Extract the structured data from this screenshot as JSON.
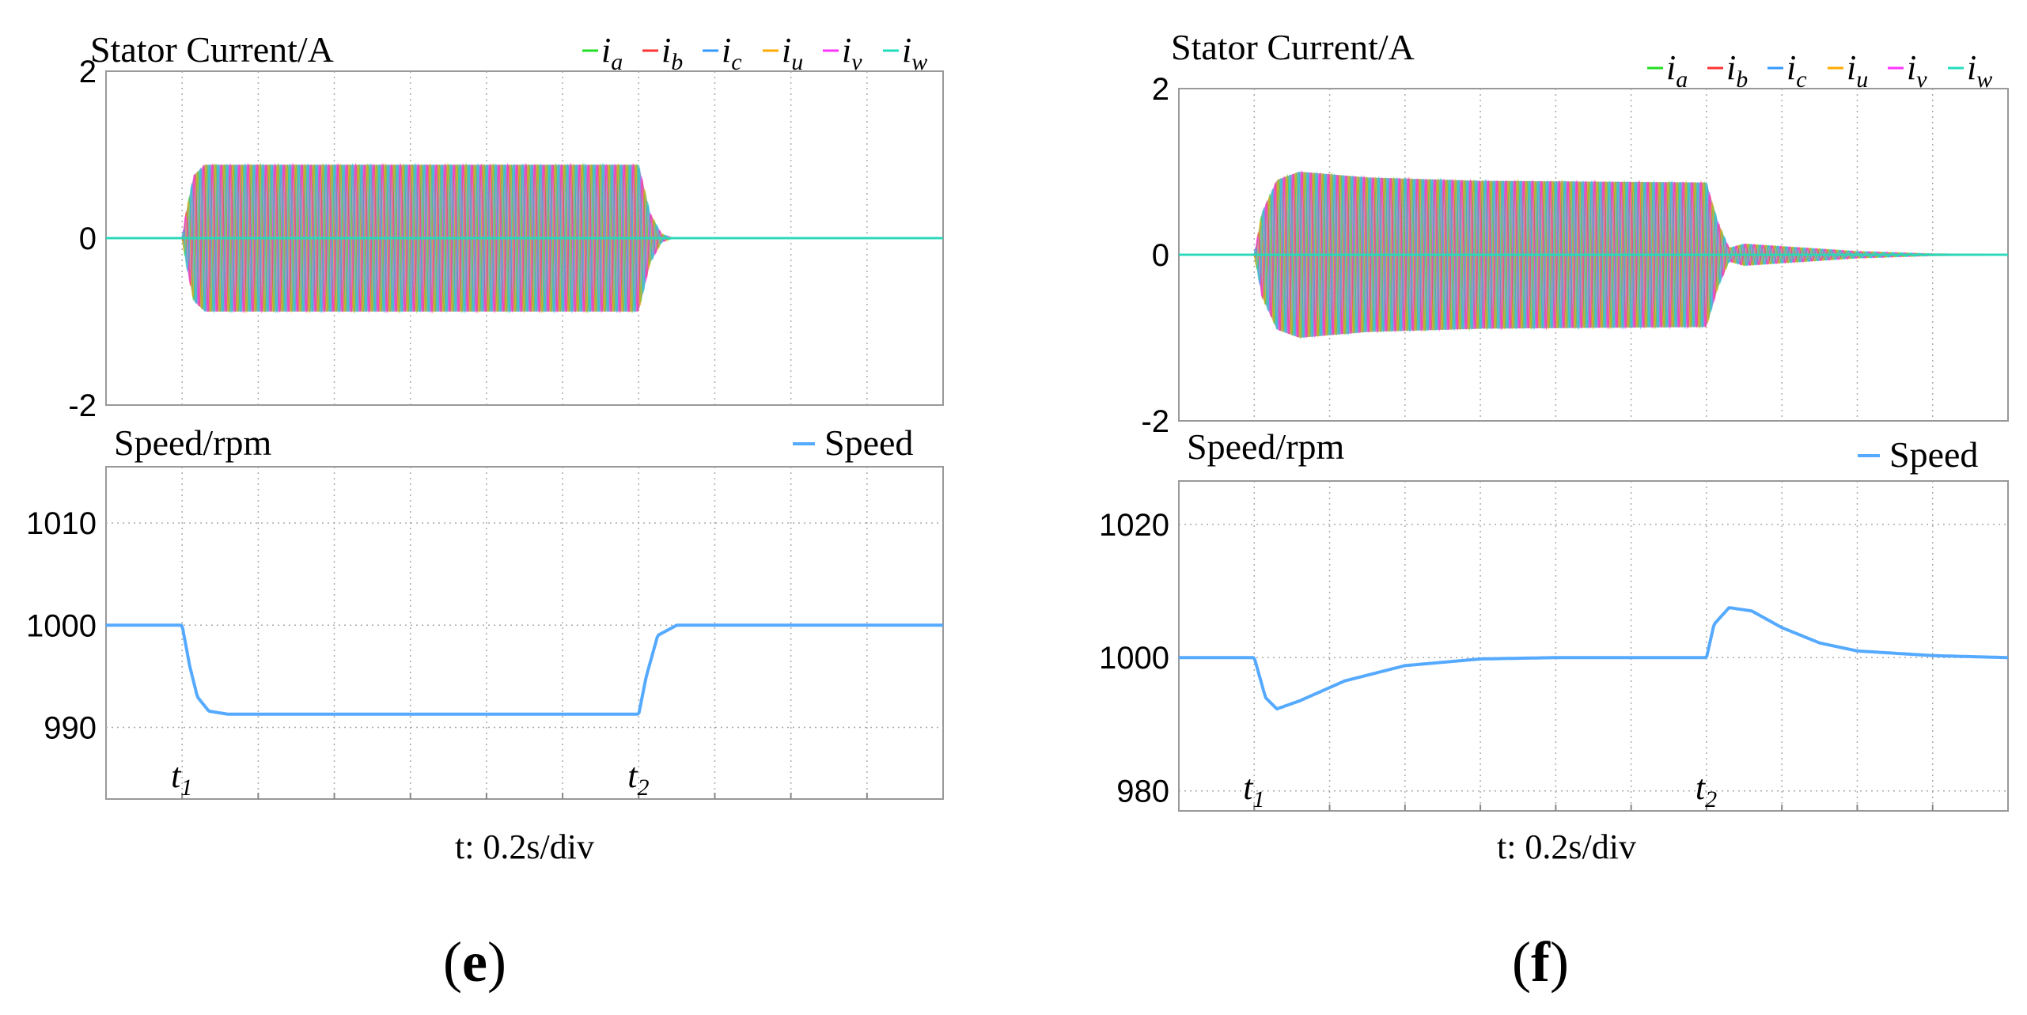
{
  "figure": {
    "time_axis_label": "t: 0.2s/div",
    "event_labels": [
      "t1",
      "t2"
    ]
  },
  "colors": {
    "i_a": "#22dd22",
    "i_b": "#ff3333",
    "i_c": "#3399ff",
    "i_u": "#ffaa00",
    "i_v": "#ff33ff",
    "i_w": "#22ddbb",
    "speed": "#55aaff",
    "current_fill": "#a08fb0"
  },
  "chart_data": [
    {
      "panel": "e",
      "panel_label": "e",
      "current": {
        "type": "line",
        "title": "Stator Current/A",
        "ylim": [
          -2,
          2
        ],
        "yticks": [
          2,
          0,
          -2
        ],
        "legend": [
          "i_a",
          "i_b",
          "i_c",
          "i_u",
          "i_v",
          "i_w"
        ],
        "legend_position": "top-right",
        "x_divisions": 11,
        "t1_div": 1,
        "t2_div": 7,
        "amplitude_profile": [
          [
            0,
            0
          ],
          [
            1,
            0
          ],
          [
            1.05,
            0.3
          ],
          [
            1.15,
            0.75
          ],
          [
            1.3,
            0.88
          ],
          [
            7,
            0.88
          ],
          [
            7.15,
            0.3
          ],
          [
            7.3,
            0.05
          ],
          [
            7.45,
            0
          ],
          [
            11,
            0
          ]
        ]
      },
      "speed": {
        "type": "line",
        "title": "Speed/rpm",
        "legend": "Speed",
        "ylim": [
          983,
          1015.5
        ],
        "yticks": [
          1010,
          1000,
          990
        ],
        "x_divisions": 11,
        "t1_div": 1,
        "t2_div": 7,
        "series": [
          [
            0,
            1000
          ],
          [
            1,
            1000
          ],
          [
            1.1,
            996
          ],
          [
            1.2,
            993
          ],
          [
            1.35,
            991.6
          ],
          [
            1.6,
            991.3
          ],
          [
            7,
            991.3
          ],
          [
            7.1,
            995
          ],
          [
            7.25,
            999
          ],
          [
            7.5,
            1000
          ],
          [
            11,
            1000
          ]
        ]
      }
    },
    {
      "panel": "f",
      "panel_label": "f",
      "current": {
        "type": "line",
        "title": "Stator Current/A",
        "ylim": [
          -2,
          2
        ],
        "yticks": [
          2,
          0,
          -2
        ],
        "legend": [
          "i_a",
          "i_b",
          "i_c",
          "i_u",
          "i_v",
          "i_w"
        ],
        "legend_position": "top-right",
        "x_divisions": 11,
        "t1_div": 1,
        "t2_div": 7,
        "amplitude_profile": [
          [
            0,
            0
          ],
          [
            1,
            0
          ],
          [
            1.1,
            0.5
          ],
          [
            1.3,
            0.9
          ],
          [
            1.6,
            1.0
          ],
          [
            2.5,
            0.93
          ],
          [
            4,
            0.89
          ],
          [
            7,
            0.87
          ],
          [
            7.15,
            0.4
          ],
          [
            7.3,
            0.08
          ],
          [
            7.5,
            0.13
          ],
          [
            8,
            0.1
          ],
          [
            9,
            0.04
          ],
          [
            10,
            0.01
          ],
          [
            11,
            0
          ]
        ]
      },
      "speed": {
        "type": "line",
        "title": "Speed/rpm",
        "legend": "Speed",
        "ylim": [
          977,
          1026.5
        ],
        "yticks": [
          1020,
          1000,
          980
        ],
        "x_divisions": 11,
        "t1_div": 1,
        "t2_div": 7,
        "series": [
          [
            0,
            1000
          ],
          [
            1,
            1000
          ],
          [
            1.15,
            994
          ],
          [
            1.3,
            992.3
          ],
          [
            1.6,
            993.5
          ],
          [
            2.2,
            996.5
          ],
          [
            3,
            998.8
          ],
          [
            4,
            999.8
          ],
          [
            5,
            1000
          ],
          [
            7,
            1000
          ],
          [
            7.1,
            1005
          ],
          [
            7.3,
            1007.5
          ],
          [
            7.6,
            1007
          ],
          [
            8,
            1004.5
          ],
          [
            8.5,
            1002.2
          ],
          [
            9,
            1001
          ],
          [
            10,
            1000.3
          ],
          [
            11,
            1000
          ]
        ]
      }
    }
  ]
}
